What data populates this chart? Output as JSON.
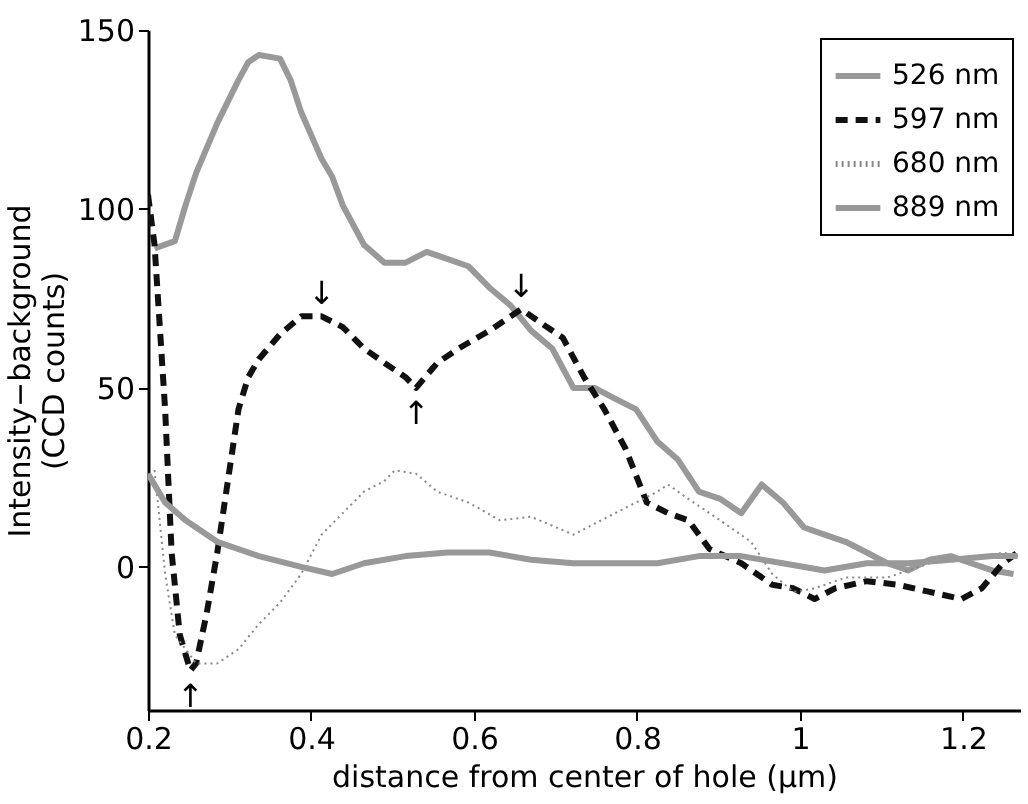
{
  "chart_data": {
    "type": "line",
    "xlabel": "distance from center of hole (μm)",
    "ylabel": "Intensity−background (CCD counts)",
    "xlim": [
      0.2,
      1.27
    ],
    "ylim": [
      -40,
      150
    ],
    "xticks": [
      0.2,
      0.4,
      0.6,
      0.8,
      1,
      1.2
    ],
    "yticks": [
      0,
      50,
      100,
      150
    ],
    "grid": false,
    "legend": "top right",
    "series": [
      {
        "name": "526 nm",
        "color": "#999999",
        "line_style": "solid",
        "x": [
          0.208,
          0.233,
          0.246,
          0.259,
          0.285,
          0.311,
          0.323,
          0.336,
          0.362,
          0.375,
          0.388,
          0.413,
          0.426,
          0.439,
          0.465,
          0.49,
          0.516,
          0.542,
          0.568,
          0.593,
          0.619,
          0.645,
          0.67,
          0.696,
          0.722,
          0.748,
          0.773,
          0.799,
          0.825,
          0.85,
          0.876,
          0.902,
          0.928,
          0.953,
          0.979,
          1.005,
          1.03,
          1.056,
          1.082,
          1.107,
          1.133,
          1.159,
          1.185,
          1.21,
          1.236,
          1.262
        ],
        "values": [
          89,
          91,
          101,
          110,
          124,
          136,
          141,
          143,
          142,
          136,
          127,
          114,
          109,
          101,
          90,
          85,
          85,
          88,
          86,
          84,
          78,
          73,
          66,
          61,
          50,
          50,
          47,
          44,
          35,
          30,
          21,
          19,
          15,
          23,
          18,
          11,
          9,
          7,
          4,
          1,
          -1,
          2,
          3,
          1,
          -1,
          -2
        ]
      },
      {
        "name": "597 nm",
        "color": "#111111",
        "line_style": "dashed",
        "x": [
          0.2,
          0.208,
          0.221,
          0.229,
          0.239,
          0.252,
          0.259,
          0.272,
          0.285,
          0.298,
          0.311,
          0.323,
          0.336,
          0.362,
          0.388,
          0.413,
          0.439,
          0.465,
          0.49,
          0.516,
          0.529,
          0.555,
          0.581,
          0.619,
          0.658,
          0.683,
          0.709,
          0.735,
          0.76,
          0.786,
          0.812,
          0.838,
          0.863,
          0.889,
          0.928,
          0.966,
          0.992,
          1.018,
          1.043,
          1.082,
          1.12,
          1.159,
          1.198,
          1.223,
          1.249,
          1.267
        ],
        "values": [
          104,
          90,
          44,
          4,
          -19,
          -29,
          -27,
          -13,
          4,
          24,
          44,
          53,
          58,
          65,
          70,
          70,
          67,
          61,
          57,
          53,
          50,
          57,
          61,
          66,
          72,
          68,
          64,
          53,
          44,
          33,
          18,
          15,
          13,
          5,
          1,
          -5,
          -6,
          -9,
          -6,
          -4,
          -5,
          -7,
          -9,
          -6,
          1,
          4
        ]
      },
      {
        "name": "680 nm",
        "color": "#888888",
        "line_style": "dotted",
        "x": [
          0.208,
          0.221,
          0.233,
          0.259,
          0.285,
          0.311,
          0.336,
          0.362,
          0.388,
          0.413,
          0.439,
          0.465,
          0.49,
          0.503,
          0.529,
          0.555,
          0.593,
          0.632,
          0.67,
          0.722,
          0.773,
          0.825,
          0.838,
          0.863,
          0.902,
          0.94,
          0.966,
          0.992,
          1.018,
          1.056,
          1.107,
          1.159,
          1.21,
          1.249,
          1.267
        ],
        "values": [
          27,
          -2,
          -19,
          -27,
          -27,
          -23,
          -16,
          -10,
          -2,
          9,
          15,
          21,
          24,
          27,
          26,
          21,
          18,
          13,
          14,
          9,
          15,
          21,
          23,
          19,
          13,
          7,
          -2,
          -7,
          -6,
          -3,
          -3,
          1,
          2,
          4,
          3
        ]
      },
      {
        "name": "889 nm",
        "color": "#999999",
        "line_style": "solid",
        "x": [
          0.2,
          0.221,
          0.246,
          0.285,
          0.336,
          0.388,
          0.426,
          0.465,
          0.516,
          0.568,
          0.619,
          0.67,
          0.722,
          0.773,
          0.825,
          0.876,
          0.928,
          0.979,
          1.03,
          1.082,
          1.133,
          1.185,
          1.236,
          1.267
        ],
        "values": [
          26,
          18,
          13,
          7,
          3,
          0,
          -2,
          1,
          3,
          4,
          4,
          2,
          1,
          1,
          1,
          3,
          3,
          1,
          -1,
          1,
          1,
          2,
          3,
          3
        ]
      }
    ],
    "annotations": [
      {
        "text": "↓",
        "x": 0.413,
        "y": 70
      },
      {
        "text": "↓",
        "x": 0.658,
        "y": 72
      },
      {
        "text": "↑",
        "x": 0.529,
        "y": 50
      },
      {
        "text": "↑",
        "x": 0.252,
        "y": -29
      }
    ]
  }
}
